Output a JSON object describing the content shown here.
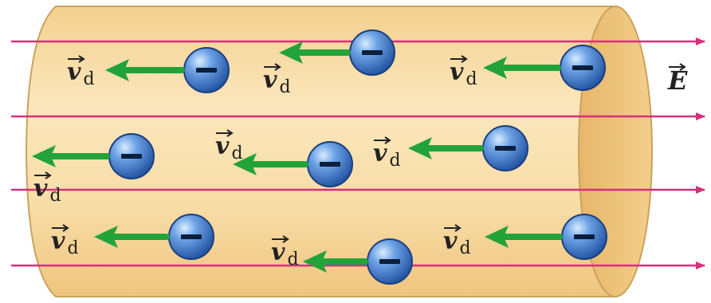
{
  "labels": {
    "drift_velocity": "v",
    "drift_sub": "d",
    "field": "E",
    "electron_sign": "–"
  },
  "colors": {
    "wire_fill": "#f7dca0",
    "wire_edge": "#c9a25c",
    "field_lines": "#d62f7b",
    "drift_arrow": "#22a33a",
    "electron_fill": "#3f79cf"
  }
}
